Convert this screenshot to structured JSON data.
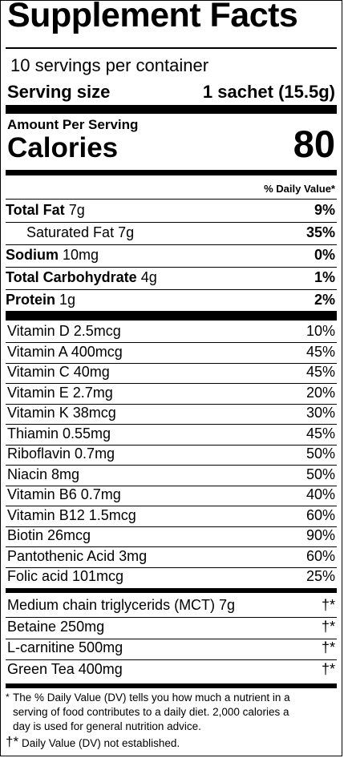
{
  "title": "Supplement Facts",
  "servings_per_container": "10 servings per container",
  "serving_size_label": "Serving size",
  "serving_size_value": "1 sachet (15.5g)",
  "amount_per_serving": "Amount Per Serving",
  "calories_label": "Calories",
  "calories_value": "80",
  "dv_header": "% Daily Value*",
  "macros": [
    {
      "name": "Total Fat",
      "amount": "7g",
      "dv": "9%",
      "bold": true,
      "indent": false
    },
    {
      "name": "Saturated Fat",
      "amount": "7g",
      "dv": "35%",
      "bold": false,
      "indent": true
    },
    {
      "name": "Sodium",
      "amount": "10mg",
      "dv": "0%",
      "bold": true,
      "indent": false
    },
    {
      "name": "Total Carbohydrate",
      "amount": "4g",
      "dv": "1%",
      "bold": true,
      "indent": false
    },
    {
      "name": "Protein",
      "amount": "1g",
      "dv": "2%",
      "bold": true,
      "indent": false
    }
  ],
  "vitamins": [
    {
      "label": "Vitamin D 2.5mcg",
      "dv": "10%"
    },
    {
      "label": "Vitamin A 400mcg",
      "dv": "45%"
    },
    {
      "label": "Vitamin C 40mg",
      "dv": "45%"
    },
    {
      "label": "Vitamin E 2.7mg",
      "dv": "20%"
    },
    {
      "label": "Vitamin K 38mcg",
      "dv": "30%"
    },
    {
      "label": "Thiamin 0.55mg",
      "dv": "45%"
    },
    {
      "label": "Riboflavin 0.7mg",
      "dv": "50%"
    },
    {
      "label": "Niacin 8mg",
      "dv": "50%"
    },
    {
      "label": "Vitamin B6 0.7mg",
      "dv": "40%"
    },
    {
      "label": "Vitamin B12 1.5mcg",
      "dv": "60%"
    },
    {
      "label": "Biotin 26mcg",
      "dv": "90%"
    },
    {
      "label": "Pantothenic Acid 3mg",
      "dv": "60%"
    },
    {
      "label": "Folic acid 101mcg",
      "dv": "25%"
    }
  ],
  "others": [
    {
      "label": "Medium chain triglycerids (MCT) 7g",
      "dv": "†*"
    },
    {
      "label": "Betaine 250mg",
      "dv": "†*"
    },
    {
      "label": "L-carnitine 500mg",
      "dv": "†*"
    },
    {
      "label": "Green Tea 400mg",
      "dv": "†*"
    }
  ],
  "footnote_1_mark": "*",
  "footnote_1_lines": [
    "The % Daily Value (DV) tells you how much a nutrient in a",
    "serving of food contributes to a daily diet. 2,000 calories a",
    "day is used for general nutrition advice."
  ],
  "footnote_2_mark": "†*",
  "footnote_2_text": "Daily Value (DV) not established."
}
